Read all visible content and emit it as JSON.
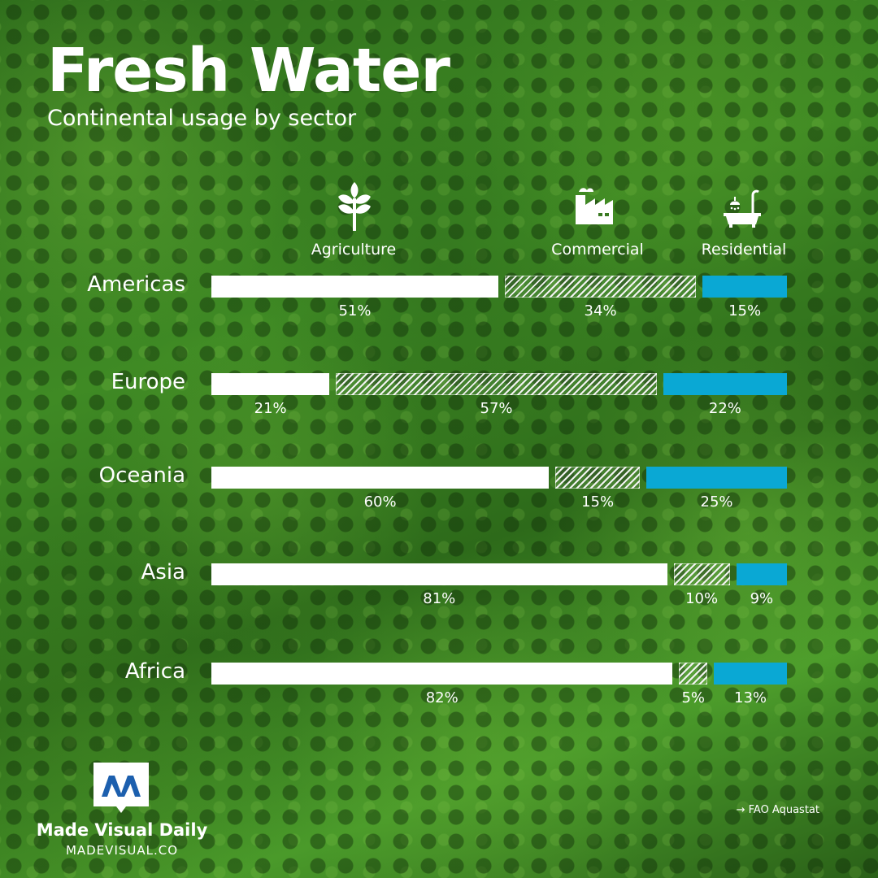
{
  "header": {
    "title": "Fresh Water",
    "subtitle": "Continental usage by sector"
  },
  "icons": {
    "agriculture": "wheat-icon",
    "commercial": "factory-icon",
    "residential": "bathtub-icon"
  },
  "colors": {
    "agriculture": "#ffffff",
    "commercial": "hatched-white",
    "residential": "#0aa8d4"
  },
  "chart_data": {
    "type": "bar",
    "orientation": "horizontal",
    "stacked": true,
    "title": "Fresh Water",
    "subtitle": "Continental usage by sector",
    "categories": [
      "Americas",
      "Europe",
      "Oceania",
      "Asia",
      "Africa"
    ],
    "series": [
      {
        "name": "Agriculture",
        "values": [
          51,
          21,
          60,
          81,
          82
        ]
      },
      {
        "name": "Commercial",
        "values": [
          34,
          57,
          15,
          10,
          5
        ]
      },
      {
        "name": "Residential",
        "values": [
          15,
          22,
          25,
          9,
          13
        ]
      }
    ],
    "value_labels": [
      [
        "51%",
        "34%",
        "15%"
      ],
      [
        "21%",
        "57%",
        "22%"
      ],
      [
        "60%",
        "15%",
        "25%"
      ],
      [
        "81%",
        "10%",
        "9%"
      ],
      [
        "82%",
        "5%",
        "13%"
      ]
    ],
    "xlim": [
      0,
      100
    ],
    "grid": false,
    "legend": "top"
  },
  "footer": {
    "brand_name": "Made Visual Daily",
    "brand_url": "MADEVISUAL.CO",
    "source": "→ FAO Aquastat"
  }
}
